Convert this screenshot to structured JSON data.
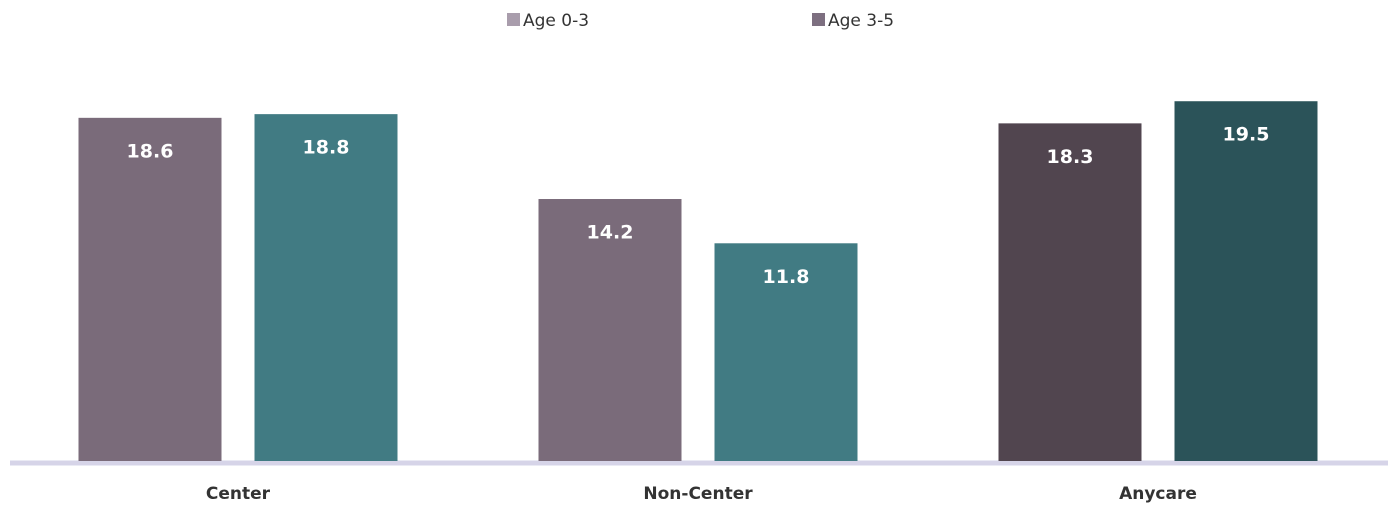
{
  "chart_data": {
    "type": "bar",
    "categories": [
      "Center",
      "Non-Center",
      "Anycare"
    ],
    "series": [
      {
        "name": "Age 0-3",
        "color": "#a99dac",
        "bar_colors": [
          "#7a6b7a",
          "#7a6b7a",
          "#51454f"
        ],
        "values": [
          18.6,
          14.2,
          18.3
        ]
      },
      {
        "name": "Age 3-5",
        "color": "#7d6f80",
        "bar_colors": [
          "#417b83",
          "#417b83",
          "#2b5359"
        ],
        "values": [
          18.8,
          11.8,
          19.5
        ]
      }
    ],
    "legend": "top"
  }
}
